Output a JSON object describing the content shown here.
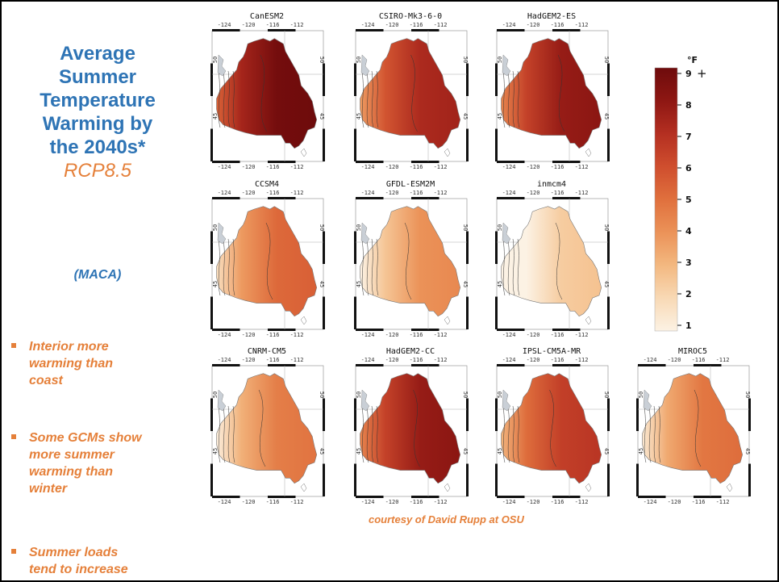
{
  "title": {
    "lines": [
      "Average",
      "Summer",
      "Temperature",
      "Warming by",
      "the 2040s*"
    ],
    "scenario": "RCP8.5"
  },
  "method": "(MACA)",
  "bullets": [
    [
      "Interior more",
      "warming than",
      "coast"
    ],
    [
      "Some GCMs show",
      "more summer",
      "warming than",
      "winter"
    ],
    [
      "Summer loads",
      "tend to increase"
    ]
  ],
  "credit": "courtesy of David Rupp at OSU",
  "axis_labels": {
    "lon": [
      "-124",
      "-120",
      "-116",
      "-112"
    ],
    "lat": [
      "45",
      "50"
    ]
  },
  "models": [
    {
      "name": "CanESM2",
      "warming": 8.6
    },
    {
      "name": "CSIRO-Mk3-6-0",
      "warming": 7.0
    },
    {
      "name": "HadGEM2-ES",
      "warming": 7.6
    },
    {
      "name": "CCSM4",
      "warming": 5.0
    },
    {
      "name": "GFDL-ESM2M",
      "warming": 3.8
    },
    {
      "name": "inmcm4",
      "warming": 2.2
    },
    {
      "name": "CNRM-CM5",
      "warming": 4.4
    },
    {
      "name": "HadGEM2-CC",
      "warming": 7.6
    },
    {
      "name": "IPSL-CM5A-MR",
      "warming": 6.3
    },
    {
      "name": "MIROC5",
      "warming": 4.6
    }
  ],
  "legend": {
    "unit": "°F",
    "ticks": [
      "1",
      "2",
      "3",
      "4",
      "5",
      "6",
      "7",
      "8",
      "9"
    ],
    "over_marker": "+",
    "min": 1,
    "max": 9,
    "colors": [
      "#fcf2e4",
      "#f8d9b5",
      "#f3b880",
      "#eb9258",
      "#e0703d",
      "#cf4e2e",
      "#b42f21",
      "#8e1713",
      "#6e0b0c"
    ]
  }
}
